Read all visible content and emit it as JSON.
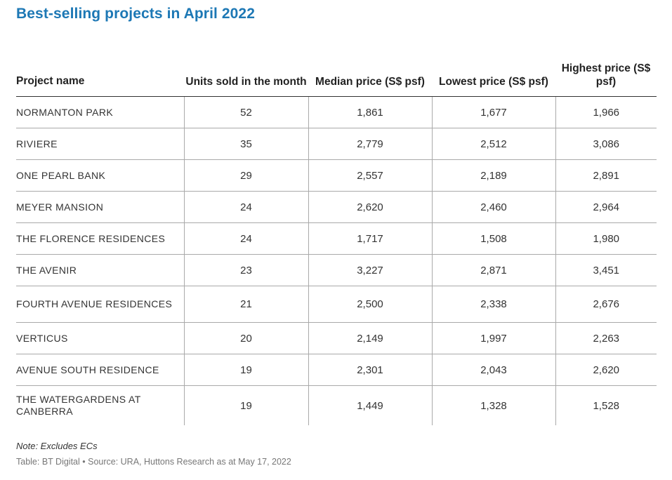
{
  "chart_data": {
    "type": "table",
    "title": "Best-selling projects in April 2022",
    "columns": [
      "Project name",
      "Units sold in the month",
      "Median price (S$ psf)",
      "Lowest price (S$ psf)",
      "Highest price (S$ psf)"
    ],
    "rows": [
      [
        "NORMANTON PARK",
        "52",
        "1,861",
        "1,677",
        "1,966"
      ],
      [
        "RIVIERE",
        "35",
        "2,779",
        "2,512",
        "3,086"
      ],
      [
        "ONE PEARL BANK",
        "29",
        "2,557",
        "2,189",
        "2,891"
      ],
      [
        "MEYER MANSION",
        "24",
        "2,620",
        "2,460",
        "2,964"
      ],
      [
        "THE FLORENCE RESIDENCES",
        "24",
        "1,717",
        "1,508",
        "1,980"
      ],
      [
        "THE AVENIR",
        "23",
        "3,227",
        "2,871",
        "3,451"
      ],
      [
        "FOURTH AVENUE RESIDENCES",
        "21",
        "2,500",
        "2,338",
        "2,676"
      ],
      [
        "VERTICUS",
        "20",
        "2,149",
        "1,997",
        "2,263"
      ],
      [
        "AVENUE SOUTH RESIDENCE",
        "19",
        "2,301",
        "2,043",
        "2,620"
      ],
      [
        "THE WATERGARDENS AT CANBERRA",
        "19",
        "1,449",
        "1,328",
        "1,528"
      ]
    ],
    "note": "Note: Excludes ECs",
    "source": "Table: BT Digital • Source: URA, Huttons Research as at May 17, 2022"
  },
  "colors": {
    "title": "#1d78b5",
    "text": "#333333",
    "source_text": "#777777",
    "rule": "#a9a9a9"
  }
}
